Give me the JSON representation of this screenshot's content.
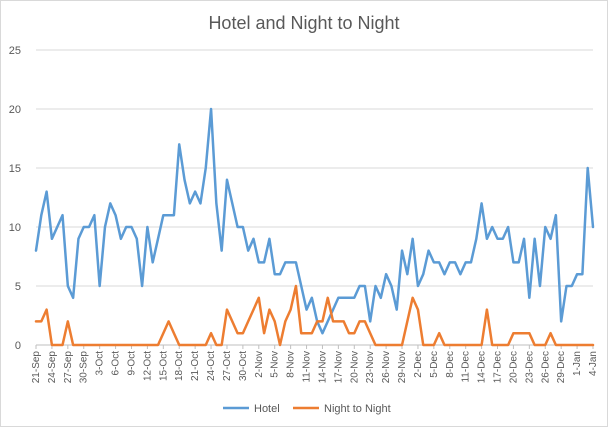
{
  "chart_data": {
    "type": "line",
    "title": "Hotel and Night to Night",
    "xlabel": "",
    "ylabel": "",
    "ylim": [
      0,
      25
    ],
    "yticks": [
      0,
      5,
      10,
      15,
      20,
      25
    ],
    "grid": true,
    "legend_position": "bottom",
    "x_tick_labels": [
      "21-Sep",
      "24-Sep",
      "27-Sep",
      "30-Sep",
      "3-Oct",
      "6-Oct",
      "9-Oct",
      "12-Oct",
      "15-Oct",
      "18-Oct",
      "21-Oct",
      "24-Oct",
      "27-Oct",
      "30-Oct",
      "2-Nov",
      "5-Nov",
      "8-Nov",
      "11-Nov",
      "14-Nov",
      "17-Nov",
      "20-Nov",
      "23-Nov",
      "26-Nov",
      "29-Nov",
      "2-Dec",
      "5-Dec",
      "8-Dec",
      "11-Dec",
      "14-Dec",
      "17-Dec",
      "20-Dec",
      "23-Dec",
      "26-Dec",
      "29-Dec",
      "1-Jan",
      "4-Jan"
    ],
    "series": [
      {
        "name": "Hotel",
        "color": "#5b9bd5",
        "values": [
          8,
          11,
          13,
          9,
          10,
          11,
          5,
          4,
          9,
          10,
          10,
          11,
          5,
          10,
          12,
          11,
          9,
          10,
          10,
          9,
          5,
          10,
          7,
          9,
          11,
          11,
          11,
          17,
          14,
          12,
          13,
          12,
          15,
          20,
          12,
          8,
          14,
          12,
          10,
          10,
          8,
          9,
          7,
          7,
          9,
          6,
          6,
          7,
          7,
          7,
          5,
          3,
          4,
          2,
          1,
          2,
          3,
          4,
          4,
          4,
          4,
          5,
          5,
          2,
          5,
          4,
          6,
          5,
          3,
          8,
          6,
          9,
          5,
          6,
          8,
          7,
          7,
          6,
          7,
          7,
          6,
          7,
          7,
          9,
          12,
          9,
          10,
          9,
          9,
          10,
          7,
          7,
          9,
          4,
          9,
          5,
          10,
          9,
          11,
          2,
          5,
          5,
          6,
          6,
          15,
          10
        ]
      },
      {
        "name": "Night to Night",
        "color": "#ed7d31",
        "values": [
          2,
          2,
          3,
          0,
          0,
          0,
          2,
          0,
          0,
          0,
          0,
          0,
          0,
          0,
          0,
          0,
          0,
          0,
          0,
          0,
          0,
          0,
          0,
          0,
          1,
          2,
          1,
          0,
          0,
          0,
          0,
          0,
          0,
          1,
          0,
          0,
          3,
          2,
          1,
          1,
          2,
          3,
          4,
          1,
          3,
          2,
          0,
          2,
          3,
          5,
          1,
          1,
          1,
          2,
          2,
          4,
          2,
          2,
          2,
          1,
          1,
          2,
          2,
          1,
          0,
          0,
          0,
          0,
          0,
          0,
          2,
          4,
          3,
          0,
          0,
          0,
          1,
          0,
          0,
          0,
          0,
          0,
          0,
          0,
          0,
          3,
          0,
          0,
          0,
          0,
          1,
          1,
          1,
          1,
          0,
          0,
          0,
          1,
          0,
          0,
          0,
          0,
          0,
          0,
          0,
          0
        ]
      }
    ]
  }
}
